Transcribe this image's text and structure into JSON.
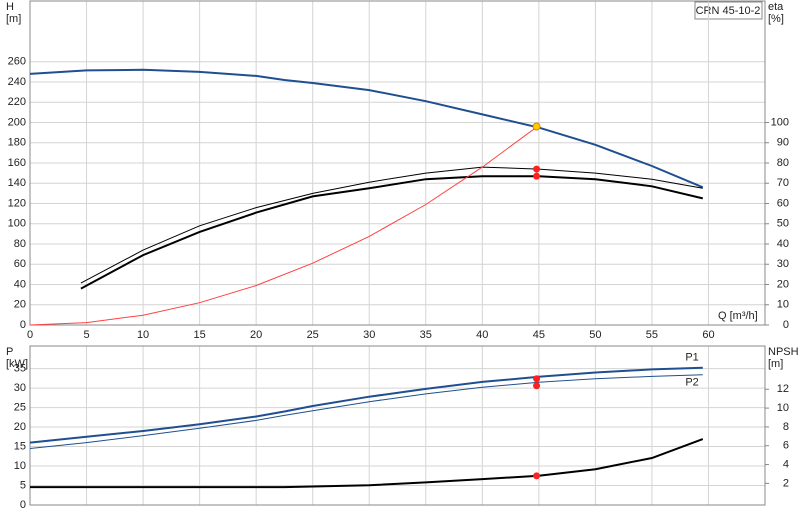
{
  "chart_data": [
    {
      "type": "line",
      "annotation": "CRN 45-10-2",
      "ylabel": [
        "H",
        "[m]"
      ],
      "y2label": [
        "eta",
        "[%]"
      ],
      "xlabel": "Q [m³/h]",
      "xlim": [
        0,
        65
      ],
      "xticks": [
        0,
        5,
        10,
        15,
        20,
        25,
        30,
        35,
        40,
        45,
        50,
        55,
        60
      ],
      "ylim": [
        0,
        320
      ],
      "yticks": [
        0,
        20,
        40,
        60,
        80,
        100,
        120,
        140,
        160,
        180,
        200,
        220,
        240,
        260
      ],
      "y2lim": [
        0,
        160
      ],
      "y2ticks": [
        0,
        10,
        20,
        30,
        40,
        50,
        60,
        70,
        80,
        90,
        100
      ],
      "grid": true,
      "series": [
        {
          "color": "#1f4f8f",
          "width": 2,
          "x": [
            0,
            5,
            10,
            15,
            20,
            22.5,
            25,
            30,
            35,
            40,
            45,
            50,
            55,
            59.5
          ],
          "values": [
            248,
            251.5,
            252,
            250,
            246,
            242,
            239,
            232,
            221,
            208,
            195,
            178,
            157,
            136
          ]
        },
        {
          "color": "#000000",
          "width": 1,
          "axis": "y2",
          "x": [
            4.5,
            10,
            15,
            20,
            25,
            30,
            35,
            40,
            45,
            50,
            55,
            59.5
          ],
          "values": [
            20.7,
            37,
            49,
            58,
            65,
            70.5,
            75,
            78,
            77,
            75,
            72,
            67.5
          ]
        },
        {
          "color": "#000000",
          "width": 2,
          "axis": "y2",
          "x": [
            4.5,
            10,
            15,
            20,
            25,
            30,
            35,
            40,
            45,
            50,
            55,
            59.5
          ],
          "values": [
            18,
            34.5,
            46,
            55.5,
            63.5,
            67.5,
            72,
            73.5,
            73.5,
            72,
            68.5,
            62.5
          ]
        },
        {
          "color": "#ff4040",
          "width": 1,
          "x": [
            0,
            5,
            10,
            15,
            20,
            25,
            30,
            35,
            40,
            45
          ],
          "values": [
            0,
            2.4,
            9.7,
            22,
            39,
            61,
            87.5,
            119,
            156,
            197
          ]
        },
        {
          "color": "#ff2020",
          "marker": true,
          "axis": "y2",
          "x": [
            44.8,
            44.8
          ],
          "values": [
            77,
            73.5
          ]
        },
        {
          "color": "#ffcc00",
          "marker": true,
          "x": [
            44.8
          ],
          "values": [
            196
          ]
        }
      ]
    },
    {
      "type": "line",
      "ylabel": [
        "P",
        "[kW]"
      ],
      "y2label": [
        "NPSH",
        "[m]"
      ],
      "ylim": [
        0,
        40.8
      ],
      "yticks": [
        0,
        5,
        10,
        15,
        20,
        25,
        30,
        35
      ],
      "y2lim": [
        -0.3,
        16.6
      ],
      "y2ticks": [
        2,
        4,
        6,
        8,
        10,
        12
      ],
      "grid": true,
      "series": [
        {
          "name": "P1",
          "color": "#1f4f8f",
          "width": 2,
          "x": [
            0,
            5,
            10,
            15,
            20,
            22.5,
            25,
            30,
            35,
            40,
            45,
            50,
            55,
            59.5
          ],
          "values": [
            16,
            17.5,
            19,
            20.7,
            22.7,
            24,
            25.4,
            27.8,
            29.8,
            31.6,
            32.9,
            34,
            34.8,
            35.2
          ]
        },
        {
          "name": "P2",
          "color": "#1f4f8f",
          "width": 1,
          "x": [
            0,
            5,
            10,
            15,
            20,
            22.5,
            25,
            30,
            35,
            40,
            45,
            50,
            55,
            59.5
          ],
          "values": [
            14.5,
            16,
            17.8,
            19.7,
            21.7,
            23,
            24.2,
            26.5,
            28.5,
            30.2,
            31.5,
            32.4,
            33,
            33.4
          ]
        },
        {
          "color": "#000000",
          "width": 2,
          "axis": "y2",
          "x": [
            0,
            22.5,
            30,
            35,
            40,
            45,
            50,
            55,
            59.5
          ],
          "values": [
            1.6,
            1.6,
            1.8,
            2.1,
            2.45,
            2.8,
            3.5,
            4.7,
            6.7
          ]
        },
        {
          "color": "#ff2020",
          "marker": true,
          "x": [
            44.8,
            44.8
          ],
          "values": [
            32.4,
            30.6
          ]
        },
        {
          "color": "#ff2020",
          "marker": true,
          "axis": "y2",
          "x": [
            44.8
          ],
          "values": [
            2.8
          ]
        }
      ]
    }
  ]
}
